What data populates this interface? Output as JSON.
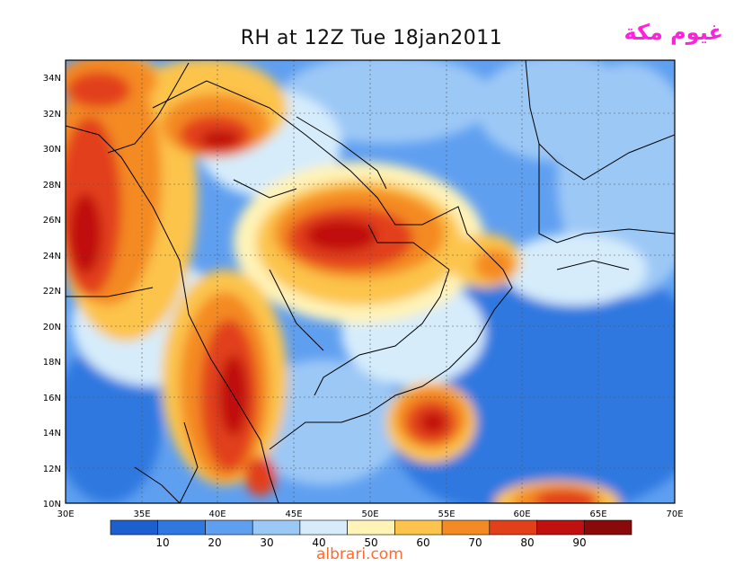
{
  "title": "RH at 12Z Tue 18jan2011",
  "brand_arabic": "غيوم مكة",
  "watermark": "albrari.com",
  "map": {
    "lon_ticks": [
      "30E",
      "35E",
      "40E",
      "45E",
      "50E",
      "55E",
      "60E",
      "65E",
      "70E"
    ],
    "lat_ticks": [
      "10N",
      "12N",
      "14N",
      "16N",
      "18N",
      "20N",
      "22N",
      "24N",
      "26N",
      "28N",
      "30N",
      "32N",
      "34N"
    ]
  },
  "colorbar": {
    "labels": [
      "10",
      "20",
      "30",
      "40",
      "50",
      "60",
      "70",
      "80",
      "90"
    ],
    "colors": [
      "#1e5fd0",
      "#2e78e0",
      "#5f9ff0",
      "#9cc8f6",
      "#d6ecfb",
      "#fff3b8",
      "#fcc44c",
      "#f48a24",
      "#e2401a",
      "#c01010",
      "#8a0a0a"
    ]
  }
}
